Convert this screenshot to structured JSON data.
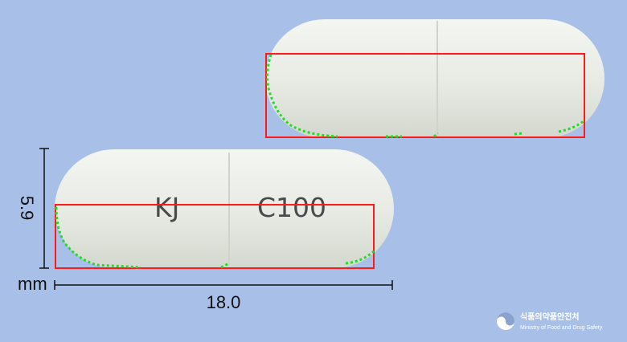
{
  "colors": {
    "background": "#a8c0e8",
    "capsule": "#e9ede6",
    "capsule_shadow": "#c9cfc6",
    "bounding_box": "#ff1a1a",
    "contour_points": "#22dd22",
    "imprint_text": "#4a4a4a"
  },
  "front_capsule": {
    "imprint_left": "KJ",
    "imprint_right": "C100"
  },
  "dimensions": {
    "height_value": "5.9",
    "unit": "mm",
    "length_value": "18.0"
  },
  "agency_logo": {
    "name_ko": "식품의약품안전처",
    "name_en": "Ministry of Food and Drug Safety",
    "icon": "taegeuk-emblem-icon"
  }
}
